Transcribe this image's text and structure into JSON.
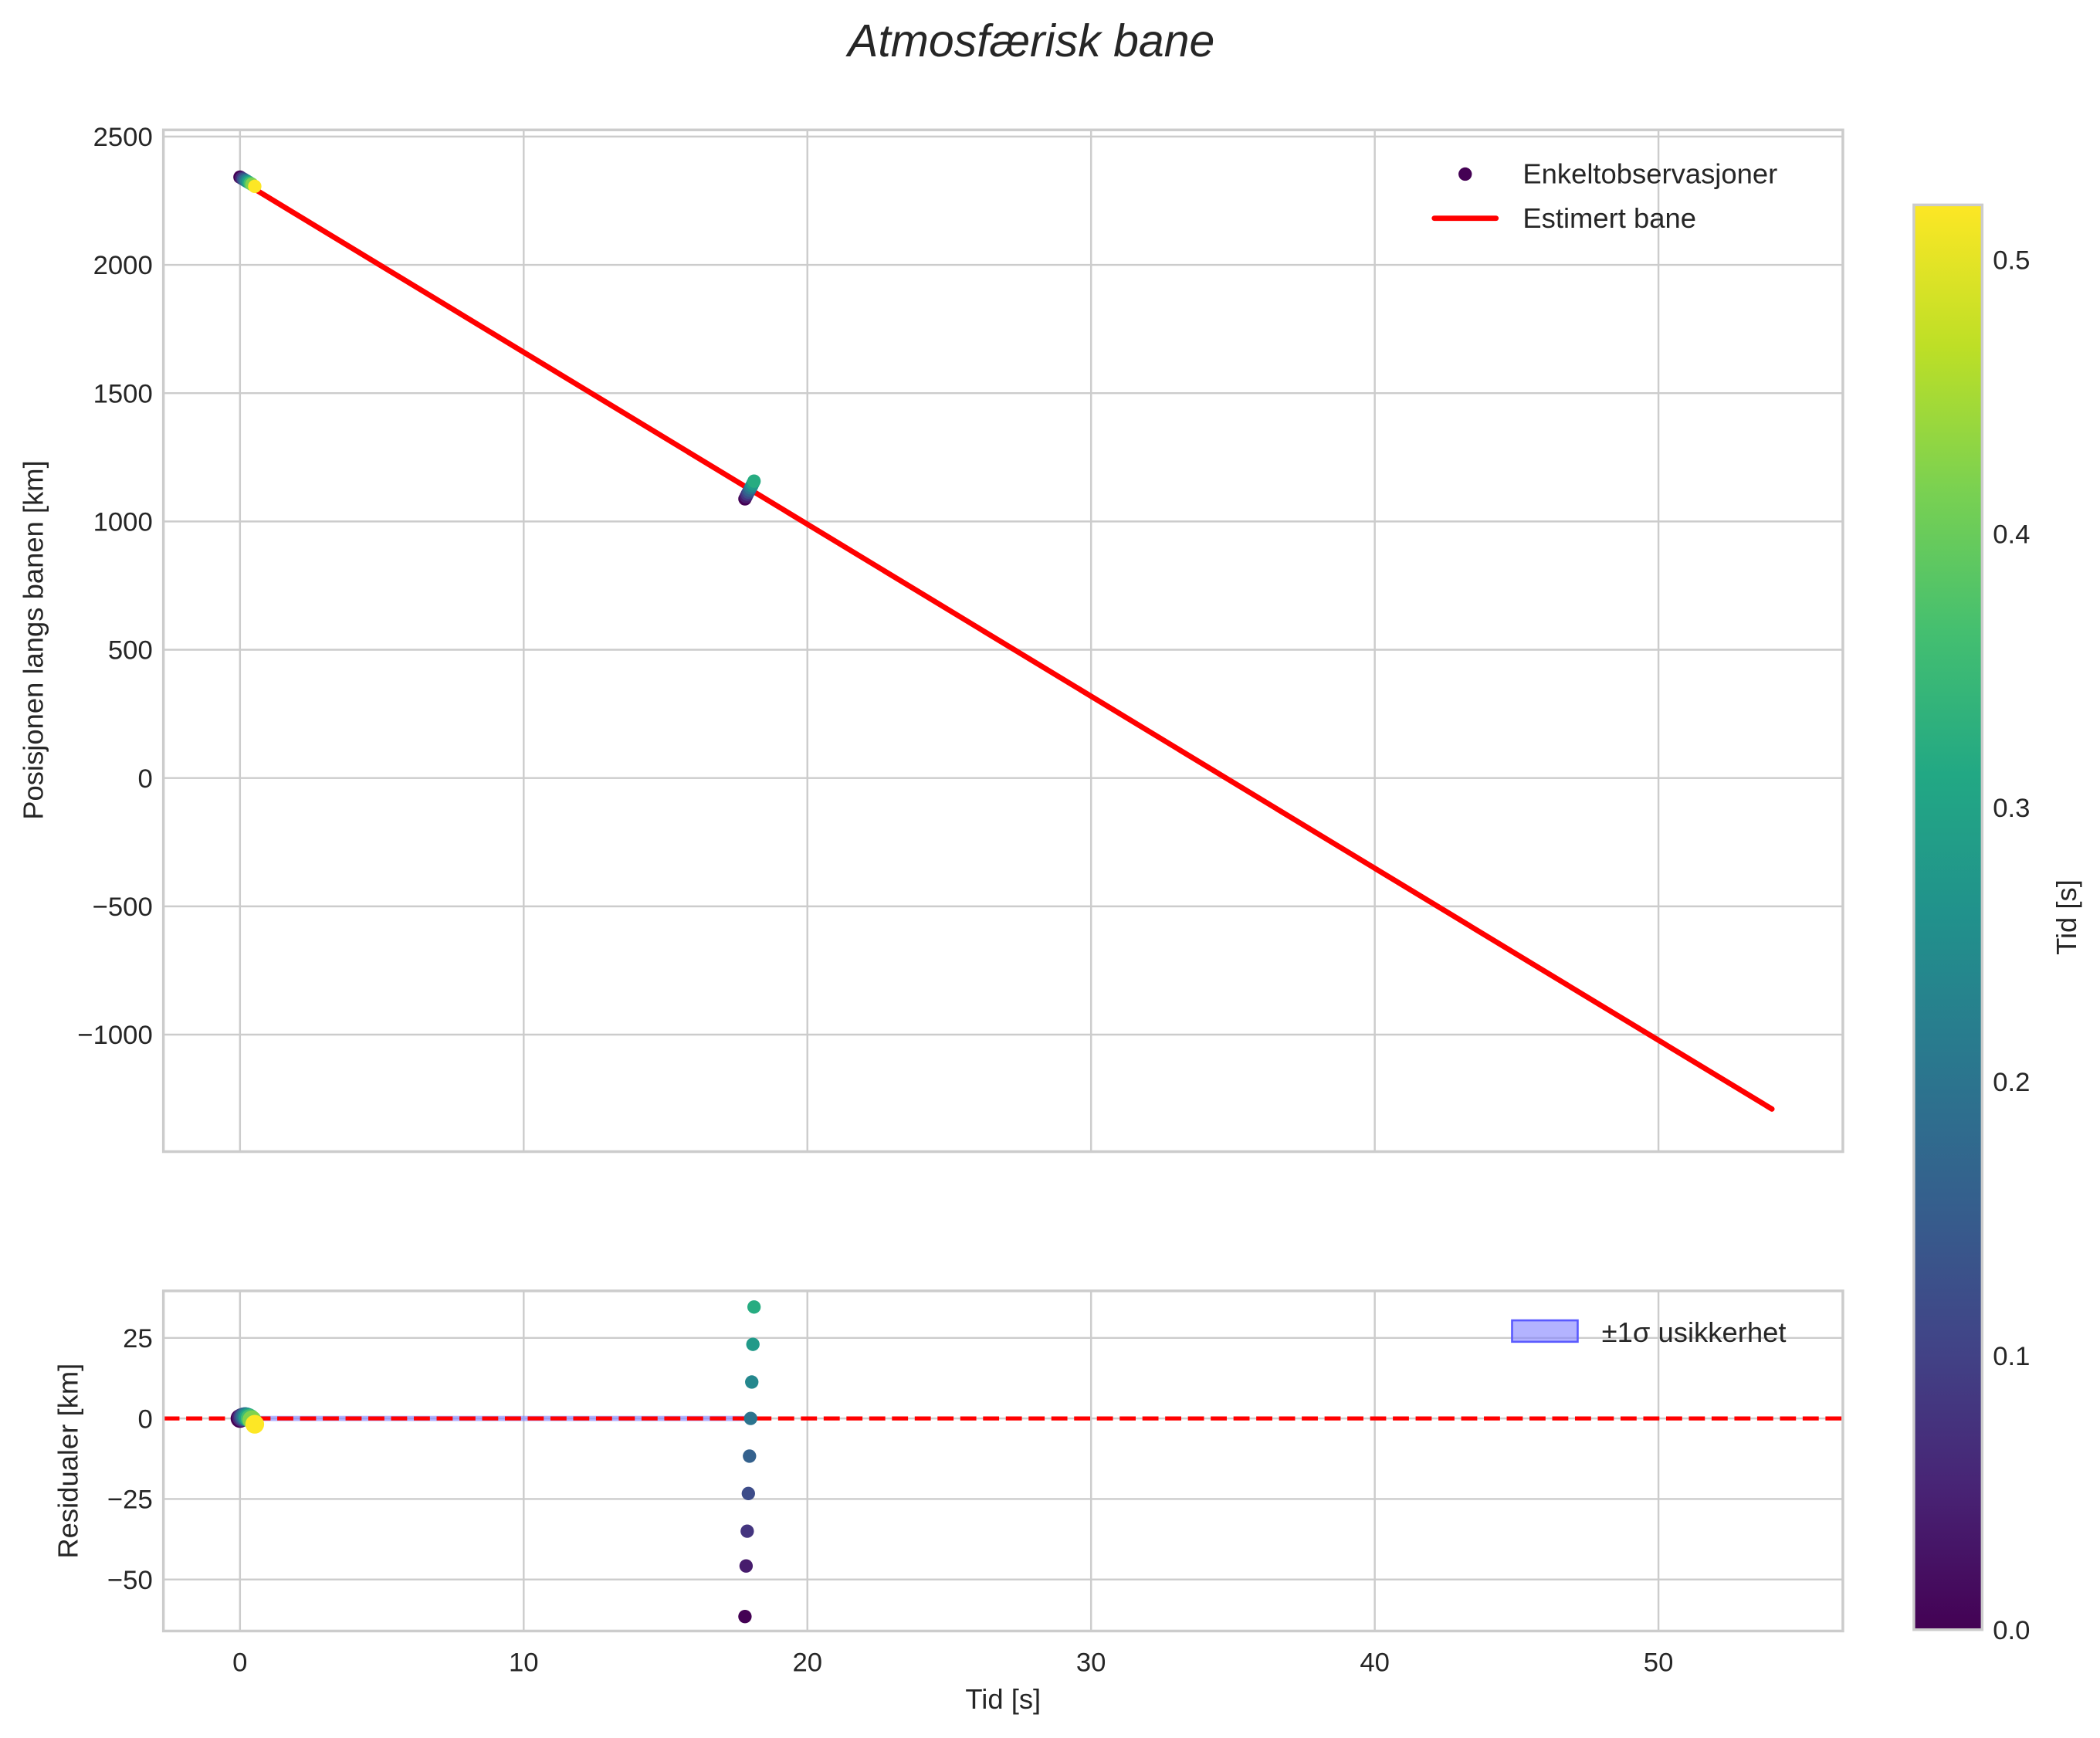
{
  "figure": {
    "title": "Atmosfærisk bane",
    "background": "#ffffff"
  },
  "colors": {
    "fit_line": "#ff0000",
    "zero_line": "#ff0000",
    "uncertainty_fill": "#8080ff",
    "grid": "#cccccc",
    "text": "#262626",
    "colormap": "viridis"
  },
  "chart_data": [
    {
      "id": "trajectory",
      "type": "scatter",
      "title": "Atmosfærisk bane",
      "xlabel": "",
      "ylabel": "Posisjonen langs banen [km]",
      "xlim": [
        -2.7,
        56.5
      ],
      "ylim": [
        -1456,
        2526
      ],
      "xticks": [
        0,
        10,
        20,
        30,
        40,
        50
      ],
      "yticks": [
        2500,
        2000,
        1500,
        1000,
        500,
        0,
        -500,
        -1000
      ],
      "ytick_labels": [
        "2500",
        "2000",
        "1500",
        "1000",
        "500",
        "0",
        "−500",
        "−1000"
      ],
      "grid": true,
      "legend_position": "upper right",
      "legend": [
        {
          "label": "Enkeltobservasjoner",
          "marker": "dot",
          "color": "#440154"
        },
        {
          "label": "Estimert bane",
          "marker": "line",
          "color": "#ff0000"
        }
      ],
      "series": [
        {
          "name": "Enkeltobservasjoner",
          "kind": "scatter",
          "points": [
            {
              "x": 0.0,
              "y": 2342,
              "c": 0.0
            },
            {
              "x": 0.06,
              "y": 2338,
              "c": 0.06
            },
            {
              "x": 0.12,
              "y": 2334,
              "c": 0.12
            },
            {
              "x": 0.18,
              "y": 2330,
              "c": 0.18
            },
            {
              "x": 0.24,
              "y": 2326,
              "c": 0.24
            },
            {
              "x": 0.3,
              "y": 2322,
              "c": 0.3
            },
            {
              "x": 0.36,
              "y": 2318,
              "c": 0.36
            },
            {
              "x": 0.42,
              "y": 2314,
              "c": 0.42
            },
            {
              "x": 0.52,
              "y": 2306,
              "c": 0.52
            },
            {
              "x": 17.8,
              "y": 1088,
              "c": 0.0
            },
            {
              "x": 17.84,
              "y": 1097,
              "c": 0.04
            },
            {
              "x": 17.88,
              "y": 1106,
              "c": 0.08
            },
            {
              "x": 17.92,
              "y": 1114,
              "c": 0.12
            },
            {
              "x": 17.96,
              "y": 1122,
              "c": 0.16
            },
            {
              "x": 18.0,
              "y": 1131,
              "c": 0.2
            },
            {
              "x": 18.04,
              "y": 1139,
              "c": 0.24
            },
            {
              "x": 18.08,
              "y": 1148,
              "c": 0.28
            },
            {
              "x": 18.12,
              "y": 1157,
              "c": 0.32
            }
          ]
        },
        {
          "name": "Estimert bane",
          "kind": "line",
          "x": [
            0,
            54
          ],
          "y": [
            2330,
            -1290
          ]
        }
      ]
    },
    {
      "id": "residuals",
      "type": "scatter",
      "xlabel": "Tid [s]",
      "ylabel": "Residualer [km]",
      "xlim": [
        -2.7,
        56.5
      ],
      "ylim": [
        -66,
        39.6
      ],
      "xticks": [
        0,
        10,
        20,
        30,
        40,
        50
      ],
      "yticks": [
        25,
        0,
        -25,
        -50
      ],
      "ytick_labels": [
        "25",
        "0",
        "−25",
        "−50"
      ],
      "grid": true,
      "legend_position": "upper right",
      "legend": [
        {
          "label": "±1σ usikkerhet",
          "marker": "patch",
          "color": "#8080ff"
        }
      ],
      "series": [
        {
          "name": "Residualer",
          "kind": "scatter",
          "points": [
            {
              "x": 0.0,
              "y": 0.0,
              "c": 0.0
            },
            {
              "x": 0.06,
              "y": 0.3,
              "c": 0.06
            },
            {
              "x": 0.12,
              "y": 0.5,
              "c": 0.12
            },
            {
              "x": 0.18,
              "y": 0.6,
              "c": 0.18
            },
            {
              "x": 0.24,
              "y": 0.5,
              "c": 0.24
            },
            {
              "x": 0.3,
              "y": 0.3,
              "c": 0.3
            },
            {
              "x": 0.36,
              "y": 0.0,
              "c": 0.36
            },
            {
              "x": 0.42,
              "y": -0.4,
              "c": 0.42
            },
            {
              "x": 0.52,
              "y": -1.8,
              "c": 0.52
            },
            {
              "x": 17.8,
              "y": -61.5,
              "c": 0.0
            },
            {
              "x": 17.84,
              "y": -45.8,
              "c": 0.04
            },
            {
              "x": 17.88,
              "y": -35.0,
              "c": 0.08
            },
            {
              "x": 17.92,
              "y": -23.3,
              "c": 0.12
            },
            {
              "x": 17.96,
              "y": -11.7,
              "c": 0.16
            },
            {
              "x": 18.0,
              "y": 0.0,
              "c": 0.2
            },
            {
              "x": 18.04,
              "y": 11.3,
              "c": 0.24
            },
            {
              "x": 18.08,
              "y": 23.0,
              "c": 0.28
            },
            {
              "x": 18.12,
              "y": 34.6,
              "c": 0.32
            }
          ]
        },
        {
          "name": "±1σ usikkerhet",
          "kind": "band",
          "x": [
            0,
            18.1
          ],
          "lower": [
            -0.4,
            -0.4
          ],
          "upper": [
            0.4,
            0.4
          ]
        },
        {
          "name": "zero",
          "kind": "hline_dashed",
          "y": 0
        }
      ]
    },
    {
      "id": "colorbar",
      "type": "heatmap",
      "label": "Tid [s]",
      "colormap": "viridis",
      "range": [
        0.0,
        0.52
      ],
      "ticks": [
        0.0,
        0.1,
        0.2,
        0.3,
        0.4,
        0.5
      ],
      "tick_labels": [
        "0.0",
        "0.1",
        "0.2",
        "0.3",
        "0.4",
        "0.5"
      ]
    }
  ]
}
